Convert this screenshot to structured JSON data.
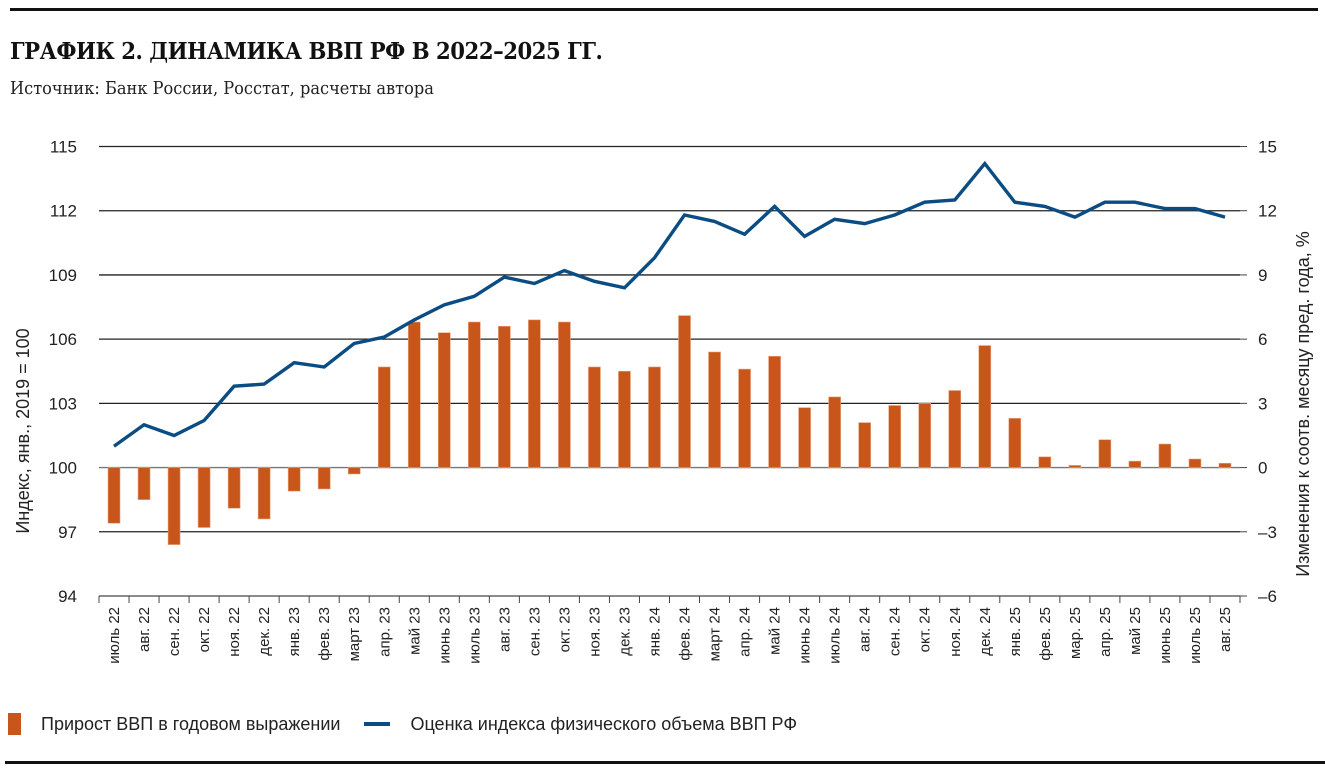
{
  "header": {
    "title": "ГРАФИК 2. ДИНАМИКА ВВП РФ В 2022–2025 ГГ.",
    "source": "Источник: Банк России, Росстат, расчеты автора"
  },
  "colors": {
    "bar": "#C8551A",
    "line": "#0B4C83",
    "grid": "#222222"
  },
  "chart_data": {
    "type": "bar+line",
    "title": "ГРАФИК 2. ДИНАМИКА ВВП РФ В 2022–2025 ГГ.",
    "categories": [
      "июль 22",
      "авг. 22",
      "сен. 22",
      "окт. 22",
      "ноя. 22",
      "дек. 22",
      "янв. 23",
      "фев. 23",
      "март 23",
      "апр. 23",
      "май 23",
      "июнь 23",
      "июль 23",
      "авг. 23",
      "сен. 23",
      "окт. 23",
      "ноя. 23",
      "дек. 23",
      "янв. 24",
      "фев. 24",
      "март 24",
      "апр. 24",
      "май 24",
      "июнь 24",
      "июль 24",
      "авг. 24",
      "сен. 24",
      "окт. 24",
      "ноя. 24",
      "дек. 24",
      "янв. 25",
      "фев. 25",
      "мар. 25",
      "апр. 25",
      "май 25",
      "июнь 25",
      "июль 25",
      "авг. 25"
    ],
    "series": [
      {
        "name": "Прирост ВВП в годовом выражении",
        "type": "bar",
        "axis": "right",
        "values": [
          -2.6,
          -1.5,
          -3.6,
          -2.8,
          -1.9,
          -2.4,
          -1.1,
          -1.0,
          -0.3,
          4.7,
          6.8,
          6.3,
          6.8,
          6.6,
          6.9,
          6.8,
          4.7,
          4.5,
          4.7,
          7.1,
          5.4,
          4.6,
          5.2,
          2.8,
          3.3,
          2.1,
          2.9,
          3.0,
          3.6,
          5.7,
          2.3,
          0.5,
          0.1,
          1.3,
          0.3,
          1.1,
          0.4,
          0.2
        ]
      },
      {
        "name": "Оценка индекса физического объема ВВП РФ",
        "type": "line",
        "axis": "left",
        "values": [
          101.0,
          102.0,
          101.5,
          102.2,
          103.8,
          103.9,
          104.9,
          104.7,
          105.8,
          106.1,
          106.9,
          107.6,
          108.0,
          108.9,
          108.6,
          109.2,
          108.7,
          108.4,
          109.8,
          111.8,
          111.5,
          110.9,
          112.2,
          110.8,
          111.6,
          111.4,
          111.8,
          112.4,
          112.5,
          114.2,
          112.4,
          112.2,
          111.7,
          112.4,
          112.4,
          112.1,
          112.1,
          111.7
        ]
      }
    ],
    "y_left": {
      "label": "Индекс, янв., 2019 = 100",
      "ylim": [
        94,
        115
      ],
      "ticks": [
        "94",
        "97",
        "100",
        "103",
        "106",
        "109",
        "112",
        "115"
      ]
    },
    "y_right": {
      "label": "Изменения к соотв. месяцу пред. года, %",
      "ylim": [
        -6,
        15
      ],
      "ticks": [
        "–6",
        "–3",
        "0",
        "3",
        "6",
        "9",
        "12",
        "15"
      ]
    },
    "xlabel": "",
    "grid": true,
    "legend_position": "bottom-left"
  },
  "legend": {
    "bar_label": "Прирост ВВП в годовом выражении",
    "line_label": "Оценка индекса физического объема ВВП РФ"
  }
}
